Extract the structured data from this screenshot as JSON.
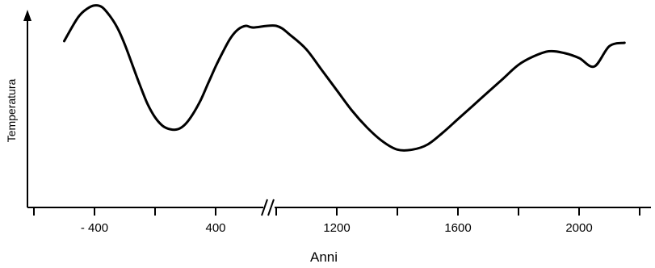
{
  "chart_data": {
    "type": "line",
    "title": "",
    "xlabel": "Anni",
    "ylabel": "Temperatura",
    "x_tick_labels": [
      "- 400",
      "400",
      "1200",
      "1600",
      "2000"
    ],
    "axis_break": true,
    "grid": false,
    "legend": "none",
    "y_ticks_shown": false,
    "y_units": "relative (no scale printed, 0-100)",
    "series": [
      {
        "x": [
          -600,
          -550,
          -500,
          -450,
          -400,
          -350,
          -300,
          -250,
          -200,
          -150,
          -100,
          -50,
          0,
          50,
          100,
          150,
          200,
          250,
          300,
          350,
          400,
          450,
          500,
          550,
          600,
          650,
          1000,
          1050,
          1100,
          1150,
          1200,
          1250,
          1300,
          1350,
          1400,
          1450,
          1500,
          1550,
          1600,
          1650,
          1700,
          1750,
          1800,
          1850,
          1900,
          1950,
          2000,
          2050,
          2100,
          2150
        ],
        "y": [
          81,
          89,
          96,
          100,
          102,
          101,
          96,
          89,
          79,
          67,
          55,
          44,
          36,
          31,
          29,
          29,
          32,
          38,
          46,
          56,
          66,
          75,
          83,
          88,
          90,
          89,
          90,
          84,
          76,
          64,
          52,
          40,
          30,
          22,
          17,
          17,
          20,
          27,
          35,
          43,
          51,
          59,
          67,
          72,
          75,
          74,
          71,
          66,
          78,
          80
        ],
        "color": "#000000"
      }
    ]
  }
}
